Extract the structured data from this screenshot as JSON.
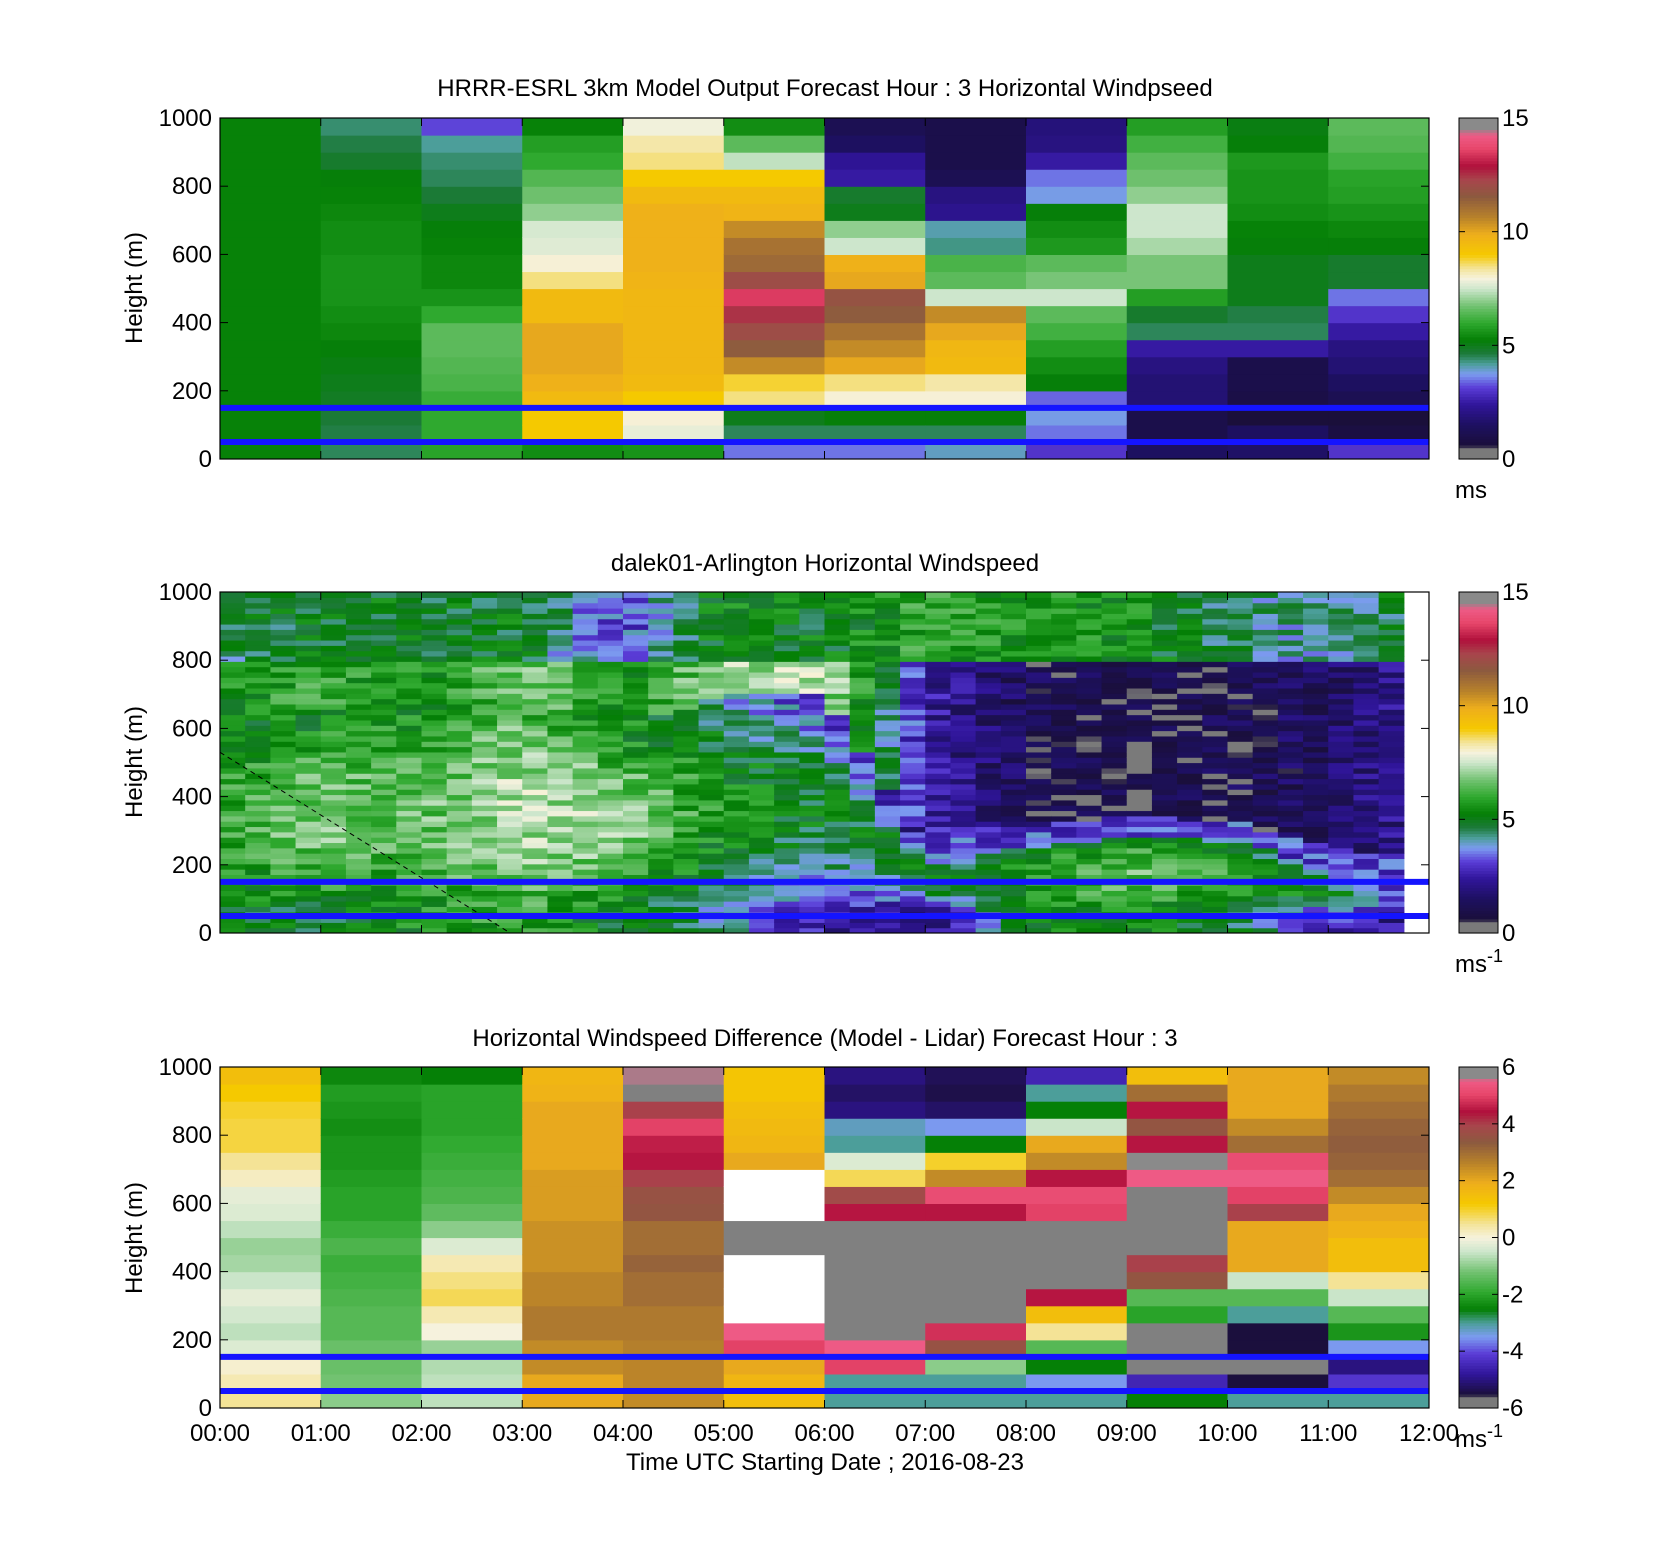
{
  "figure": {
    "xlabel": "Time UTC  Starting Date ; 2016-08-23"
  },
  "chart_data": [
    {
      "type": "heatmap",
      "title": "HRRR-ESRL 3km Model Output   Forecast Hour : 3 Horizontal Windpseed",
      "ylabel": "Height (m)",
      "ylim": [
        0,
        1000
      ],
      "yticks": [
        "0",
        "200",
        "400",
        "600",
        "800",
        "1000"
      ],
      "xlim": [
        "00:00",
        "12:00"
      ],
      "show_xticklabels": false,
      "colorbar": {
        "range": [
          0,
          15
        ],
        "ticks": [
          "0",
          "5",
          "10",
          "15"
        ],
        "unit_label": "ms",
        "unit_sup": "",
        "colormap": "wind"
      },
      "reference_lines_m": [
        50,
        150
      ],
      "columns_hourly_m_s": [
        [
          5.3,
          5.3,
          5.3,
          5.3,
          5.3,
          5.3,
          5.3,
          5.3,
          5.3,
          5.3,
          5.3,
          5.3,
          5.3,
          5.3,
          5.3,
          5.3,
          5.3,
          5.3,
          5.3,
          5.3
        ],
        [
          4.5,
          4.6,
          4.7,
          4.9,
          5.0,
          5.1,
          5.2,
          5.4,
          5.5,
          5.6,
          5.6,
          5.6,
          5.5,
          5.5,
          5.4,
          5.3,
          5.2,
          4.8,
          4.6,
          4.4
        ],
        [
          5.9,
          6.0,
          6.0,
          6.1,
          6.3,
          6.4,
          6.5,
          6.5,
          6.0,
          5.6,
          5.4,
          5.4,
          5.3,
          5.2,
          5.0,
          4.7,
          4.5,
          4.4,
          4.2,
          3.2
        ],
        [
          5.5,
          9.0,
          9.0,
          9.5,
          9.8,
          10.0,
          10.0,
          10.0,
          9.5,
          9.5,
          8.5,
          8.0,
          7.7,
          7.6,
          7.0,
          6.7,
          6.4,
          6.0,
          5.8,
          5.3
        ],
        [
          5.6,
          7.8,
          8.0,
          9.0,
          9.5,
          9.6,
          9.6,
          9.6,
          9.6,
          9.6,
          9.7,
          9.8,
          9.8,
          9.8,
          9.8,
          9.5,
          9.0,
          8.5,
          8.3,
          7.9
        ],
        [
          3.5,
          4.5,
          5.0,
          8.5,
          8.8,
          10.5,
          11.5,
          12.0,
          12.5,
          13.5,
          12.0,
          11.2,
          11.0,
          10.5,
          9.7,
          9.5,
          9.0,
          7.4,
          6.5,
          5.5
        ],
        [
          3.5,
          4.5,
          5.2,
          8.0,
          8.5,
          10.0,
          10.5,
          11.0,
          11.5,
          11.8,
          10.0,
          9.8,
          7.5,
          7.0,
          5.0,
          4.8,
          2.5,
          2.3,
          1.5,
          1.2
        ],
        [
          4.0,
          4.5,
          5.2,
          8.0,
          8.3,
          9.5,
          9.6,
          10.0,
          10.5,
          7.5,
          6.5,
          6.3,
          4.3,
          4.1,
          2.2,
          2.0,
          1.2,
          1.0,
          1.0,
          1.0
        ],
        [
          3.0,
          3.5,
          3.8,
          3.4,
          5.2,
          5.5,
          5.8,
          6.2,
          6.5,
          7.5,
          6.8,
          6.5,
          5.7,
          5.5,
          5.2,
          3.8,
          3.5,
          2.5,
          2.0,
          1.9
        ],
        [
          1.5,
          1.0,
          1.0,
          1.8,
          1.8,
          2.0,
          2.5,
          4.5,
          4.8,
          5.8,
          6.8,
          6.8,
          7.2,
          7.5,
          7.5,
          7.0,
          6.7,
          6.5,
          6.2,
          5.8
        ],
        [
          1.6,
          1.5,
          0.6,
          0.9,
          1.0,
          1.0,
          2.5,
          4.5,
          4.6,
          5.0,
          5.0,
          5.0,
          5.2,
          5.3,
          5.5,
          5.6,
          5.6,
          5.7,
          5.2,
          5.1
        ],
        [
          3.0,
          0.8,
          0.6,
          1.2,
          1.5,
          1.8,
          2.0,
          2.5,
          3.0,
          3.5,
          4.8,
          4.8,
          5.2,
          5.4,
          5.6,
          5.8,
          5.9,
          6.2,
          6.4,
          6.5
        ]
      ]
    },
    {
      "type": "heatmap",
      "title": "dalek01-Arlington  Horizontal Windspeed",
      "ylabel": "Height (m)",
      "ylim": [
        0,
        1000
      ],
      "yticks": [
        "0",
        "200",
        "400",
        "600",
        "800",
        "1000"
      ],
      "xlim": [
        "00:00",
        "12:00"
      ],
      "show_xticklabels": false,
      "colorbar": {
        "range": [
          0,
          15
        ],
        "ticks": [
          "0",
          "5",
          "10",
          "15"
        ],
        "unit_label": "ms",
        "unit_sup": "-1",
        "colormap": "wind"
      },
      "reference_lines_m": [
        50,
        150
      ],
      "dashed_line_m": [
        [
          0.0,
          530
        ],
        [
          2.88,
          0
        ]
      ],
      "profiles_hourly_m_s": [
        {
          "time_h": 0,
          "surface": 5.0,
          "low_max": 6.0,
          "mid": 5.5,
          "top": 4.5,
          "low_depth_m": 600
        },
        {
          "time_h": 1,
          "surface": 5.0,
          "low_max": 6.8,
          "mid": 6.0,
          "top": 5.0,
          "low_depth_m": 650
        },
        {
          "time_h": 2,
          "surface": 5.5,
          "low_max": 6.5,
          "mid": 5.5,
          "top": 5.0,
          "low_depth_m": 650
        },
        {
          "time_h": 3,
          "surface": 6.0,
          "low_max": 7.3,
          "mid": 6.8,
          "top": 5.0,
          "low_depth_m": 700
        },
        {
          "time_h": 4,
          "surface": 5.0,
          "low_max": 7.0,
          "mid": 5.5,
          "top": 3.0,
          "low_depth_m": 600
        },
        {
          "time_h": 5,
          "surface": 4.0,
          "low_max": 5.5,
          "mid": 7.0,
          "top": 5.5,
          "low_depth_m": 700
        },
        {
          "time_h": 6,
          "surface": 2.5,
          "low_max": 5.0,
          "mid": 7.5,
          "top": 5.0,
          "low_depth_m": 700
        },
        {
          "time_h": 7,
          "surface": 2.0,
          "low_max": 5.0,
          "mid": 2.5,
          "top": 6.0,
          "low_depth_m": 250
        },
        {
          "time_h": 8,
          "surface": 5.0,
          "low_max": 5.5,
          "mid": 1.2,
          "top": 5.5,
          "low_depth_m": 250
        },
        {
          "time_h": 9,
          "surface": 5.5,
          "low_max": 6.5,
          "mid": 0.8,
          "top": 5.5,
          "low_depth_m": 280
        },
        {
          "time_h": 10,
          "surface": 5.0,
          "low_max": 6.0,
          "mid": 1.0,
          "top": 4.5,
          "low_depth_m": 270
        },
        {
          "time_h": 11,
          "surface": 3.0,
          "low_max": 5.0,
          "mid": 1.5,
          "top": 4.0,
          "low_depth_m": 200
        },
        {
          "time_h": 11.8,
          "surface": 2.0,
          "low_max": 3.0,
          "mid": 2.2,
          "top": 5.0,
          "low_depth_m": 150
        }
      ]
    },
    {
      "type": "heatmap",
      "title": "Horizontal Windspeed Difference (Model - Lidar) Forecast Hour : 3",
      "ylabel": "Height (m)",
      "ylim": [
        0,
        1000
      ],
      "yticks": [
        "0",
        "200",
        "400",
        "600",
        "800",
        "1000"
      ],
      "xlim": [
        "00:00",
        "12:00"
      ],
      "xticks": [
        "00:00",
        "01:00",
        "02:00",
        "03:00",
        "04:00",
        "05:00",
        "06:00",
        "07:00",
        "08:00",
        "09:00",
        "10:00",
        "11:00",
        "12:00"
      ],
      "show_xticklabels": true,
      "colorbar": {
        "range": [
          -6,
          6
        ],
        "ticks": [
          "-6",
          "-4",
          "-2",
          "0",
          "2",
          "4",
          "6"
        ],
        "unit_label": "ms",
        "unit_sup": "-1",
        "colormap": "diff"
      },
      "reference_lines_m": [
        50,
        150
      ],
      "columns_hourly_m_s": [
        [
          0.5,
          0.3,
          0.1,
          -0.3,
          -0.6,
          -0.4,
          -0.2,
          -0.5,
          -0.8,
          -0.9,
          -0.6,
          -0.3,
          -0.2,
          0.2,
          0.5,
          0.9,
          0.9,
          1.0,
          1.2,
          1.5
        ],
        [
          -1.0,
          -1.2,
          -1.3,
          -1.3,
          -1.5,
          -1.5,
          -1.6,
          -1.7,
          -1.8,
          -1.6,
          -1.8,
          -2.0,
          -2.0,
          -2.1,
          -2.2,
          -2.2,
          -2.3,
          -2.2,
          -2.1,
          -2.4
        ],
        [
          -0.6,
          -0.6,
          -0.7,
          -0.9,
          0.0,
          0.3,
          0.8,
          0.6,
          0.3,
          -0.3,
          -1.0,
          -1.4,
          -1.6,
          -1.7,
          -1.8,
          -1.9,
          -2.0,
          -2.0,
          -2.0,
          -2.5
        ],
        [
          2.0,
          2.0,
          2.5,
          2.5,
          2.8,
          2.8,
          2.6,
          2.6,
          2.4,
          2.4,
          2.4,
          2.2,
          2.2,
          2.2,
          2.0,
          2.0,
          2.0,
          2.0,
          1.8,
          1.7
        ],
        [
          2.5,
          2.6,
          2.6,
          2.7,
          2.8,
          2.8,
          3.0,
          3.0,
          3.2,
          3.0,
          3.0,
          3.5,
          3.6,
          4.0,
          4.5,
          4.6,
          5.0,
          4.0,
          "nan",
          5.6
        ],
        [
          1.5,
          1.7,
          2.0,
          5.0,
          5.5,
          "nan",
          "nan",
          "nan",
          "nan",
          "nan",
          "nan",
          "nan",
          "nan",
          "nan",
          2.0,
          1.7,
          1.6,
          1.5,
          1.3,
          1.3
        ],
        [
          -3.0,
          -3.0,
          5.0,
          5.5,
          "nan",
          "nan",
          "nan",
          "nan",
          "nan",
          "nan",
          "nan",
          4.5,
          3.8,
          0.8,
          -0.3,
          -3.0,
          -3.2,
          -5.0,
          -5.2,
          -5.0
        ],
        [
          -3.0,
          -3.0,
          -1.0,
          3.6,
          4.8,
          "nan",
          "nan",
          "nan",
          "nan",
          "nan",
          "nan",
          4.5,
          5.2,
          2.5,
          1.0,
          -2.5,
          -3.5,
          -5.2,
          -5.4,
          -5.3
        ],
        [
          -3.0,
          -3.5,
          -2.5,
          -1.5,
          0.5,
          1.5,
          4.5,
          "nan",
          "nan",
          "nan",
          "nan",
          5.0,
          5.2,
          4.5,
          2.5,
          2.0,
          -0.5,
          -2.5,
          -3.0,
          -4.5
        ],
        [
          -2.5,
          -4.5,
          "nan",
          "nan",
          "nan",
          -2.0,
          -1.5,
          3.5,
          4.0,
          "nan",
          "nan",
          "nan",
          "nan",
          5.5,
          6.0,
          4.5,
          3.5,
          4.5,
          3.0,
          1.5
        ],
        [
          -3.0,
          -5.5,
          "nan",
          -5.5,
          -5.5,
          -3.0,
          -1.5,
          -0.5,
          2.0,
          2.0,
          2.0,
          4.0,
          5.0,
          5.5,
          5.2,
          3.0,
          2.5,
          2.0,
          2.0,
          2.0
        ],
        [
          -3.0,
          -4.2,
          -5.0,
          -3.5,
          -2.2,
          -1.5,
          -0.5,
          0.5,
          1.5,
          1.5,
          1.8,
          2.0,
          2.5,
          3.0,
          3.2,
          3.3,
          3.2,
          3.0,
          2.8,
          2.5
        ]
      ]
    }
  ]
}
